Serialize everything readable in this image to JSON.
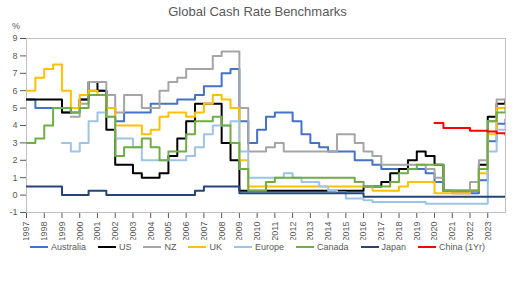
{
  "chart_data": {
    "type": "line",
    "title": "Global Cash Rate Benchmarks",
    "y_label": "%",
    "x": [
      1997,
      1997.5,
      1998,
      1998.5,
      1999,
      1999.5,
      2000,
      2000.5,
      2001,
      2001.5,
      2002,
      2002.5,
      2003,
      2003.5,
      2004,
      2004.5,
      2005,
      2005.5,
      2006,
      2006.5,
      2007,
      2007.5,
      2008,
      2008.5,
      2009,
      2009.5,
      2010,
      2010.5,
      2011,
      2011.5,
      2012,
      2012.5,
      2013,
      2013.5,
      2014,
      2014.5,
      2015,
      2015.5,
      2016,
      2016.5,
      2017,
      2017.5,
      2018,
      2018.5,
      2019,
      2019.5,
      2020,
      2020.5,
      2021,
      2021.5,
      2022,
      2022.5,
      2023,
      2023.5,
      2024
    ],
    "xlim": [
      1997,
      2024
    ],
    "xticks": [
      1997,
      1998,
      1999,
      2000,
      2001,
      2002,
      2003,
      2004,
      2005,
      2006,
      2007,
      2008,
      2009,
      2010,
      2011,
      2012,
      2013,
      2014,
      2015,
      2016,
      2017,
      2018,
      2019,
      2020,
      2021,
      2022,
      2023
    ],
    "ylim": [
      -1,
      9
    ],
    "yticks": [
      -1,
      0,
      1,
      2,
      3,
      4,
      5,
      6,
      7,
      8,
      9
    ],
    "grid": false,
    "legend": "bottom",
    "series": [
      {
        "name": "Australia",
        "color": "#4472c4",
        "values": [
          5.5,
          5.0,
          5.0,
          5.0,
          4.75,
          4.75,
          5.5,
          6.0,
          6.0,
          5.0,
          4.25,
          4.75,
          4.75,
          4.75,
          5.25,
          5.25,
          5.25,
          5.5,
          5.5,
          5.75,
          6.25,
          6.25,
          7.0,
          7.25,
          4.25,
          3.0,
          3.75,
          4.5,
          4.75,
          4.75,
          4.25,
          3.5,
          3.0,
          2.75,
          2.5,
          2.5,
          2.5,
          2.0,
          2.0,
          1.75,
          1.5,
          1.5,
          1.5,
          1.5,
          1.5,
          1.25,
          0.75,
          0.25,
          0.1,
          0.1,
          0.1,
          0.85,
          3.1,
          4.1,
          4.35
        ]
      },
      {
        "name": "US",
        "color": "#000000",
        "values": [
          5.5,
          5.5,
          5.5,
          5.5,
          4.75,
          5.0,
          5.5,
          6.5,
          6.0,
          3.75,
          1.75,
          1.75,
          1.25,
          1.0,
          1.0,
          1.25,
          2.25,
          3.25,
          4.25,
          5.25,
          5.25,
          5.25,
          3.0,
          2.0,
          0.25,
          0.25,
          0.25,
          0.25,
          0.25,
          0.25,
          0.25,
          0.25,
          0.25,
          0.25,
          0.25,
          0.25,
          0.25,
          0.25,
          0.5,
          0.5,
          0.75,
          1.25,
          1.5,
          2.0,
          2.5,
          2.25,
          1.75,
          0.25,
          0.25,
          0.25,
          0.25,
          1.75,
          4.5,
          5.25,
          5.5
        ]
      },
      {
        "name": "NZ",
        "color": "#a5a5a5",
        "values": [
          null,
          null,
          null,
          null,
          null,
          4.5,
          5.25,
          6.5,
          6.5,
          5.75,
          4.75,
          5.75,
          5.75,
          5.0,
          5.0,
          6.0,
          6.5,
          6.75,
          7.25,
          7.25,
          7.25,
          8.0,
          8.25,
          8.25,
          5.0,
          2.5,
          2.5,
          2.75,
          3.0,
          2.5,
          2.5,
          2.5,
          2.5,
          2.5,
          2.5,
          3.5,
          3.5,
          3.0,
          2.5,
          2.25,
          1.75,
          1.75,
          1.75,
          1.75,
          1.75,
          1.5,
          1.0,
          0.25,
          0.25,
          0.25,
          0.75,
          2.0,
          4.25,
          5.5,
          5.5
        ]
      },
      {
        "name": "UK",
        "color": "#ffc000",
        "values": [
          6.0,
          6.75,
          7.25,
          7.5,
          6.0,
          5.0,
          5.75,
          6.0,
          5.75,
          5.0,
          4.0,
          4.0,
          4.0,
          3.5,
          3.75,
          4.5,
          4.75,
          4.75,
          4.5,
          4.75,
          5.25,
          5.75,
          5.5,
          5.0,
          2.0,
          0.5,
          0.5,
          0.5,
          0.5,
          0.5,
          0.5,
          0.5,
          0.5,
          0.5,
          0.5,
          0.5,
          0.5,
          0.5,
          0.5,
          0.25,
          0.25,
          0.25,
          0.5,
          0.75,
          0.75,
          0.75,
          0.1,
          0.1,
          0.1,
          0.1,
          0.25,
          1.25,
          3.5,
          5.0,
          5.25
        ]
      },
      {
        "name": "Europe",
        "color": "#9dc3e6",
        "values": [
          null,
          null,
          null,
          null,
          3.0,
          2.5,
          3.0,
          4.25,
          4.75,
          4.5,
          3.25,
          3.25,
          2.75,
          2.0,
          2.0,
          2.0,
          2.0,
          2.0,
          2.25,
          2.75,
          3.5,
          4.0,
          4.0,
          4.25,
          2.5,
          1.0,
          1.0,
          1.0,
          1.0,
          1.25,
          1.0,
          0.75,
          0.75,
          0.5,
          0.25,
          0.15,
          -0.2,
          -0.2,
          -0.3,
          -0.4,
          -0.4,
          -0.4,
          -0.4,
          -0.4,
          -0.4,
          -0.5,
          -0.5,
          -0.5,
          -0.5,
          -0.5,
          -0.5,
          -0.5,
          2.5,
          3.75,
          4.0
        ]
      },
      {
        "name": "Canada",
        "color": "#70ad47",
        "values": [
          3.0,
          3.25,
          4.0,
          5.0,
          5.0,
          4.75,
          5.0,
          5.75,
          5.75,
          4.5,
          2.25,
          2.75,
          2.75,
          3.25,
          2.75,
          2.0,
          2.5,
          2.5,
          3.5,
          4.25,
          4.25,
          4.5,
          4.0,
          3.0,
          1.5,
          0.25,
          0.25,
          0.75,
          1.0,
          1.0,
          1.0,
          1.0,
          1.0,
          1.0,
          1.0,
          1.0,
          1.0,
          0.75,
          0.5,
          0.5,
          0.5,
          0.75,
          1.25,
          1.5,
          1.75,
          1.75,
          1.75,
          0.25,
          0.25,
          0.25,
          0.25,
          1.5,
          4.25,
          4.75,
          5.0
        ]
      },
      {
        "name": "Japan",
        "color": "#264478",
        "values": [
          0.5,
          0.5,
          0.5,
          0.5,
          0.0,
          0.0,
          0.0,
          0.25,
          0.25,
          0.0,
          0.0,
          0.0,
          0.0,
          0.0,
          0.0,
          0.0,
          0.0,
          0.0,
          0.0,
          0.25,
          0.5,
          0.5,
          0.5,
          0.5,
          0.1,
          0.1,
          0.1,
          0.1,
          0.1,
          0.1,
          0.1,
          0.1,
          0.1,
          0.1,
          0.1,
          0.1,
          0.1,
          0.1,
          -0.1,
          -0.1,
          -0.1,
          -0.1,
          -0.1,
          -0.1,
          -0.1,
          -0.1,
          -0.1,
          -0.1,
          -0.1,
          -0.1,
          -0.1,
          -0.1,
          -0.1,
          -0.1,
          -0.1
        ]
      },
      {
        "name": "China (1Yr)",
        "color": "#ff0000",
        "values": [
          null,
          null,
          null,
          null,
          null,
          null,
          null,
          null,
          null,
          null,
          null,
          null,
          null,
          null,
          null,
          null,
          null,
          null,
          null,
          null,
          null,
          null,
          null,
          null,
          null,
          null,
          null,
          null,
          null,
          null,
          null,
          null,
          null,
          null,
          null,
          null,
          null,
          null,
          null,
          null,
          null,
          null,
          null,
          null,
          null,
          null,
          4.15,
          3.85,
          3.85,
          3.85,
          3.7,
          3.7,
          3.65,
          3.55,
          3.45
        ]
      }
    ]
  }
}
